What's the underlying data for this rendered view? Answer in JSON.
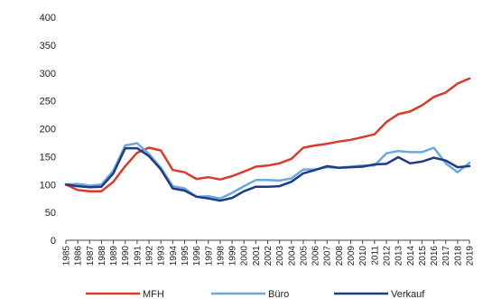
{
  "chart_data": {
    "type": "line",
    "title": "",
    "xlabel": "",
    "ylabel": "",
    "ylim": [
      0,
      400
    ],
    "yticks": [
      "0",
      "50",
      "100",
      "150",
      "200",
      "250",
      "300",
      "350",
      "400"
    ],
    "grid": false,
    "legend_position": "bottom",
    "x": [
      "1985",
      "1986",
      "1987",
      "1988",
      "1989",
      "1990",
      "1991",
      "1992",
      "1993",
      "1994",
      "1995",
      "1996",
      "1997",
      "1998",
      "1999",
      "2000",
      "2001",
      "2002",
      "2003",
      "2004",
      "2005",
      "2006",
      "2007",
      "2008",
      "2009",
      "2010",
      "2011",
      "2012",
      "2013",
      "2014",
      "2015",
      "2016",
      "2017",
      "2018",
      "2019"
    ],
    "series": [
      {
        "name": "MFH",
        "color": "#d93a2b",
        "values": [
          100,
          90,
          88,
          88,
          105,
          133,
          157,
          166,
          161,
          126,
          122,
          110,
          113,
          109,
          115,
          123,
          132,
          134,
          138,
          146,
          166,
          170,
          173,
          177,
          180,
          185,
          190,
          212,
          226,
          231,
          242,
          257,
          265,
          281,
          290
        ]
      },
      {
        "name": "Büro",
        "color": "#6ba8dc",
        "values": [
          100,
          101,
          98,
          100,
          125,
          170,
          174,
          155,
          130,
          97,
          93,
          78,
          79,
          75,
          85,
          97,
          108,
          108,
          107,
          111,
          127,
          127,
          131,
          130,
          132,
          134,
          134,
          156,
          160,
          158,
          158,
          166,
          138,
          122,
          139
        ]
      },
      {
        "name": "Verkauf",
        "color": "#1f3a87",
        "values": [
          100,
          97,
          95,
          96,
          120,
          165,
          165,
          151,
          127,
          93,
          89,
          78,
          75,
          71,
          76,
          88,
          96,
          96,
          97,
          105,
          120,
          126,
          133,
          130,
          131,
          132,
          136,
          137,
          149,
          138,
          141,
          148,
          143,
          131,
          133
        ]
      }
    ]
  }
}
